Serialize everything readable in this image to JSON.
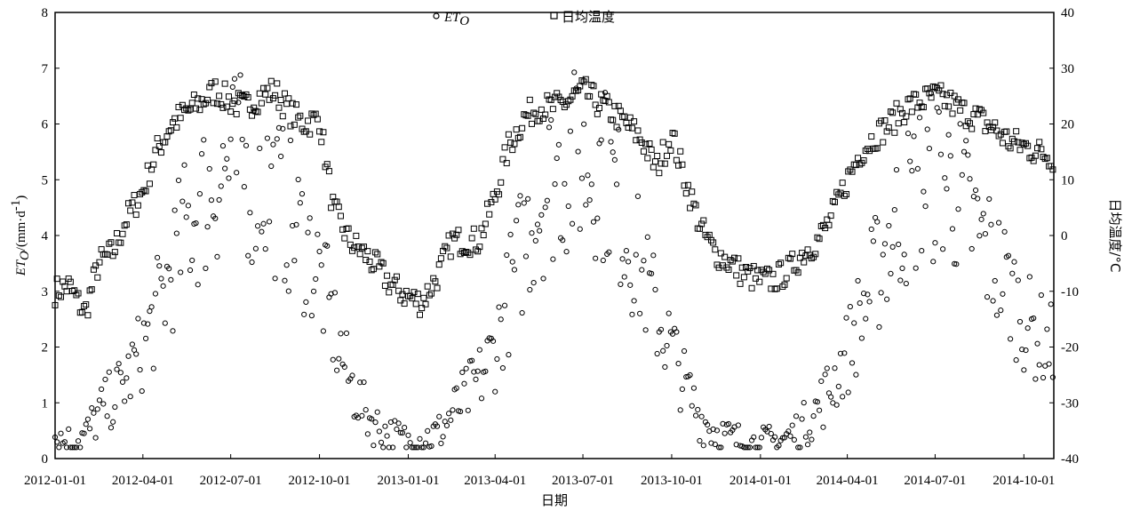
{
  "chart_data": {
    "type": "scatter",
    "title": "",
    "xlabel": "日期",
    "ylabel_left": "ET",
    "ylabel_left_sub": "O",
    "ylabel_left_units": "/(mm·d",
    "ylabel_left_units_sup": "-1",
    "ylabel_left_units_close": ")",
    "ylabel_right": "日均温度/°C",
    "x_tick_labels": [
      "2012-01-01",
      "2012-04-01",
      "2012-07-01",
      "2012-10-01",
      "2013-01-01",
      "2013-04-01",
      "2013-07-01",
      "2013-10-01",
      "2014-01-01",
      "2014-04-01",
      "2014-07-01",
      "2014-10-01"
    ],
    "x_tick_dates": [
      "2012-01-01",
      "2012-04-01",
      "2012-07-01",
      "2012-10-01",
      "2013-01-01",
      "2013-04-01",
      "2013-07-01",
      "2013-10-01",
      "2014-01-01",
      "2014-04-01",
      "2014-07-01",
      "2014-10-01"
    ],
    "xlim": [
      "2012-01-01",
      "2014-11-01"
    ],
    "ylim_left": [
      0,
      8
    ],
    "y_left_ticks": [
      "0",
      "1",
      "2",
      "3",
      "4",
      "5",
      "6",
      "7",
      "8"
    ],
    "ylim_right": [
      -40,
      40
    ],
    "y_right_ticks": [
      "-40",
      "-30",
      "-20",
      "-10",
      "0",
      "10",
      "20",
      "30",
      "40"
    ],
    "grid": false,
    "legend_position": "top-center",
    "series": [
      {
        "name": "ET",
        "name_sub": "O",
        "marker": "circle",
        "axis": "left",
        "x": [
          "2012-01-01",
          "2012-01-15",
          "2012-02-01",
          "2012-02-15",
          "2012-03-01",
          "2012-03-15",
          "2012-04-01",
          "2012-04-15",
          "2012-05-01",
          "2012-05-15",
          "2012-06-01",
          "2012-06-15",
          "2012-07-01",
          "2012-07-15",
          "2012-08-01",
          "2012-08-15",
          "2012-09-01",
          "2012-09-15",
          "2012-10-01",
          "2012-10-15",
          "2012-11-01",
          "2012-11-15",
          "2012-12-01",
          "2012-12-15",
          "2013-01-01",
          "2013-01-15",
          "2013-02-01",
          "2013-02-15",
          "2013-03-01",
          "2013-03-15",
          "2013-04-01",
          "2013-04-15",
          "2013-05-01",
          "2013-05-15",
          "2013-06-01",
          "2013-06-15",
          "2013-07-01",
          "2013-07-15",
          "2013-08-01",
          "2013-08-15",
          "2013-09-01",
          "2013-09-15",
          "2013-10-01",
          "2013-10-15",
          "2013-11-01",
          "2013-11-15",
          "2013-12-01",
          "2013-12-15",
          "2014-01-01",
          "2014-01-15",
          "2014-02-01",
          "2014-02-15",
          "2014-03-01",
          "2014-03-15",
          "2014-04-01",
          "2014-04-15",
          "2014-05-01",
          "2014-05-15",
          "2014-06-01",
          "2014-06-15",
          "2014-07-01",
          "2014-07-15",
          "2014-08-01",
          "2014-08-15",
          "2014-09-01",
          "2014-09-15",
          "2014-10-01",
          "2014-10-15",
          "2014-11-01"
        ],
        "values": [
          0.4,
          0.3,
          0.4,
          0.8,
          1.1,
          1.4,
          2.0,
          2.6,
          3.4,
          4.1,
          4.6,
          5.0,
          5.3,
          5.2,
          5.0,
          4.8,
          4.3,
          3.9,
          3.3,
          2.4,
          1.4,
          0.9,
          0.55,
          0.4,
          0.3,
          0.35,
          0.45,
          0.8,
          1.1,
          1.4,
          2.0,
          2.9,
          3.9,
          4.6,
          5.1,
          5.3,
          5.3,
          5.3,
          4.9,
          4.1,
          3.3,
          2.6,
          2.0,
          1.3,
          0.7,
          0.5,
          0.35,
          0.3,
          0.25,
          0.3,
          0.4,
          0.6,
          0.9,
          1.3,
          1.9,
          2.6,
          3.3,
          4.0,
          4.5,
          4.9,
          5.1,
          5.0,
          4.5,
          4.0,
          3.5,
          3.1,
          2.5,
          2.2,
          2.0
        ]
      },
      {
        "name": "日均温度",
        "marker": "square",
        "axis": "right",
        "x": [
          "2012-01-01",
          "2012-01-15",
          "2012-02-01",
          "2012-02-15",
          "2012-03-01",
          "2012-03-15",
          "2012-04-01",
          "2012-04-15",
          "2012-05-01",
          "2012-05-15",
          "2012-06-01",
          "2012-06-15",
          "2012-07-01",
          "2012-07-15",
          "2012-08-01",
          "2012-08-15",
          "2012-09-01",
          "2012-09-15",
          "2012-10-01",
          "2012-10-15",
          "2012-11-01",
          "2012-11-15",
          "2012-12-01",
          "2012-12-15",
          "2013-01-01",
          "2013-01-15",
          "2013-02-01",
          "2013-02-15",
          "2013-03-01",
          "2013-03-15",
          "2013-04-01",
          "2013-04-15",
          "2013-05-01",
          "2013-05-15",
          "2013-06-01",
          "2013-06-15",
          "2013-07-01",
          "2013-07-15",
          "2013-08-01",
          "2013-08-15",
          "2013-09-01",
          "2013-09-15",
          "2013-10-01",
          "2013-10-15",
          "2013-11-01",
          "2013-11-15",
          "2013-12-01",
          "2013-12-15",
          "2014-01-01",
          "2014-01-15",
          "2014-02-01",
          "2014-02-15",
          "2014-03-01",
          "2014-03-15",
          "2014-04-01",
          "2014-04-15",
          "2014-05-01",
          "2014-05-15",
          "2014-06-01",
          "2014-06-15",
          "2014-07-01",
          "2014-07-15",
          "2014-08-01",
          "2014-08-15",
          "2014-09-01",
          "2014-09-15",
          "2014-10-01",
          "2014-10-15",
          "2014-11-01"
        ],
        "values": [
          -10,
          -9,
          -14,
          -5,
          -3,
          3,
          8,
          15,
          20,
          22,
          24,
          26,
          24,
          23,
          25,
          26,
          22,
          20,
          21,
          5,
          -1,
          -3,
          -6,
          -9,
          -11,
          -12,
          -7,
          -1,
          -1,
          -1,
          7,
          16,
          21,
          23,
          23,
          24,
          26,
          24,
          22,
          20,
          17,
          12,
          18,
          10,
          1,
          -3,
          -5,
          -7,
          -8,
          -8,
          -6,
          -3,
          -1,
          3,
          10,
          15,
          18,
          20,
          23,
          24,
          25,
          24,
          22,
          21,
          19,
          17,
          16,
          15,
          14
        ]
      }
    ]
  }
}
